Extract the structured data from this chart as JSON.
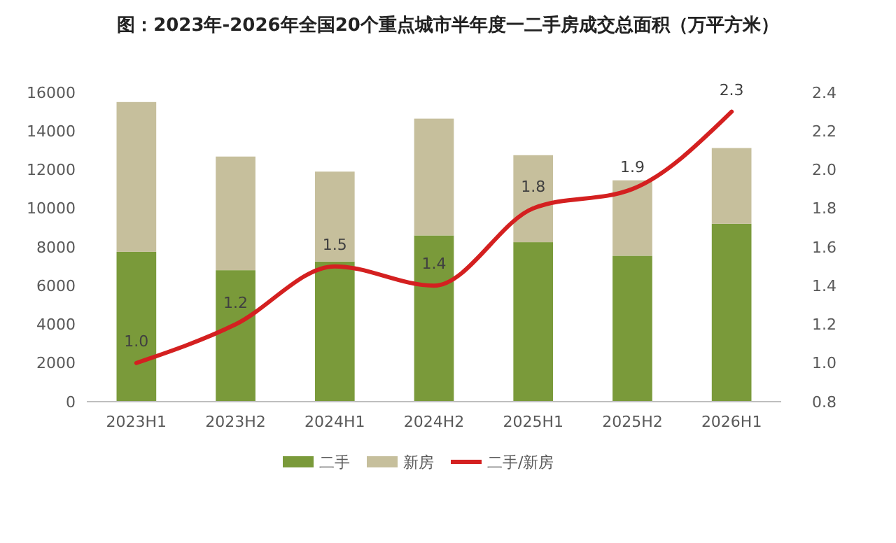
{
  "chart_data": {
    "type": "bar",
    "title": "图：2023年-2026年全国20个重点城市半年度一二手房成交总面积（万平方米）",
    "categories": [
      "2023H1",
      "2023H2",
      "2024H1",
      "2024H2",
      "2025H1",
      "2025H2",
      "2026H1"
    ],
    "stacked": true,
    "ylim": [
      0,
      16000
    ],
    "yticks": [
      0,
      2000,
      4000,
      6000,
      8000,
      10000,
      12000,
      14000,
      16000
    ],
    "y2lim": [
      0.8,
      2.4
    ],
    "y2ticks": [
      {
        "value": 0.8,
        "label": "0.8"
      },
      {
        "value": 1.0,
        "label": "1.0"
      },
      {
        "value": 1.2,
        "label": "1.2"
      },
      {
        "value": 1.4,
        "label": "1.4"
      },
      {
        "value": 1.6,
        "label": "1.6"
      },
      {
        "value": 1.8,
        "label": "1.8"
      },
      {
        "value": 2.0,
        "label": "2.0"
      },
      {
        "value": 2.2,
        "label": "2.2"
      },
      {
        "value": 2.4,
        "label": "2.4"
      }
    ],
    "legend": "bottom",
    "grid": false,
    "series": [
      {
        "name": "二手",
        "color": "#7a9a3a",
        "values": [
          7750,
          6800,
          7250,
          8600,
          8250,
          7550,
          9200
        ]
      },
      {
        "name": "新房",
        "color": "#c6bf9c",
        "values": [
          7750,
          5880,
          4650,
          6040,
          4500,
          3900,
          3920
        ]
      },
      {
        "name": "二手/新房",
        "type": "line",
        "axis": "y2",
        "color": "#d42020",
        "values": [
          1.0,
          1.2,
          1.5,
          1.4,
          1.8,
          1.9,
          2.3
        ],
        "value_labels": [
          "1.0",
          "1.2",
          "1.5",
          "1.4",
          "1.8",
          "1.9",
          "2.3"
        ],
        "marker": "none",
        "line_style": "solid"
      }
    ]
  }
}
